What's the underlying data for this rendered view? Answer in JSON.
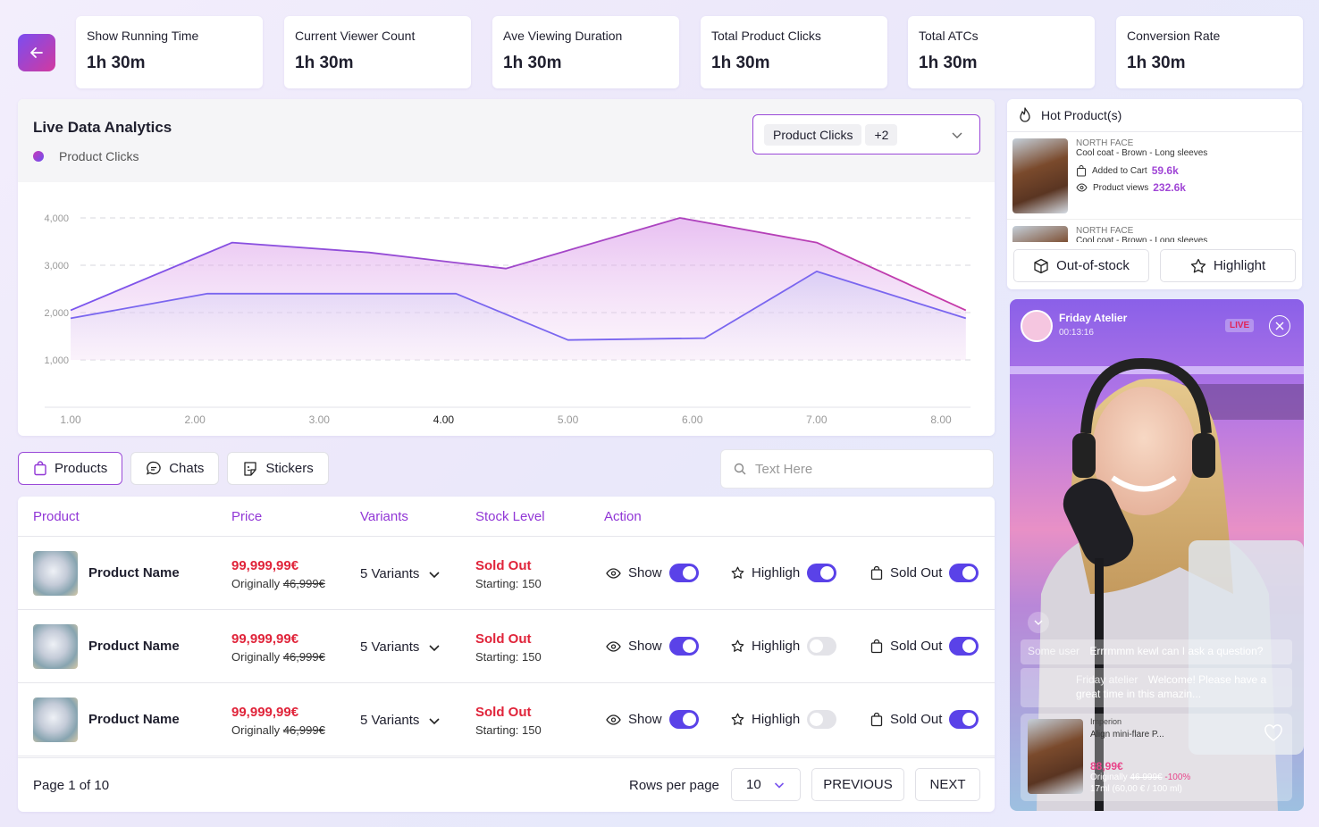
{
  "stats": [
    {
      "label": "Show Running Time",
      "value": "1h 30m"
    },
    {
      "label": "Current Viewer Count",
      "value": "1h 30m"
    },
    {
      "label": "Ave Viewing Duration",
      "value": "1h 30m"
    },
    {
      "label": "Total Product Clicks",
      "value": "1h 30m"
    },
    {
      "label": "Total ATCs",
      "value": "1h 30m"
    },
    {
      "label": "Conversion Rate",
      "value": "1h 30m"
    }
  ],
  "analytics": {
    "title": "Live Data Analytics",
    "legend": "Product Clicks",
    "select_value": "Product Clicks",
    "select_more": "+2"
  },
  "chart_data": {
    "type": "area",
    "x": [
      1.0,
      2.0,
      3.0,
      4.0,
      5.0,
      6.0,
      7.0,
      8.0
    ],
    "x_tick_labels": [
      "1.00",
      "2.00",
      "3.00",
      "4.00",
      "5.00",
      "6.00",
      "7.00",
      "8.00"
    ],
    "y_tick_labels": [
      "4,000",
      "3,000",
      "2,000",
      "1,000"
    ],
    "ylim": [
      0,
      4000
    ],
    "grid": true,
    "series": [
      {
        "name": "Product Clicks",
        "color": "#b23bbd",
        "points": [
          [
            1.0,
            2050
          ],
          [
            2.3,
            3480
          ],
          [
            3.4,
            3270
          ],
          [
            4.5,
            2930
          ],
          [
            5.9,
            4000
          ],
          [
            7.0,
            3480
          ],
          [
            8.2,
            2050
          ]
        ]
      },
      {
        "color": "#7a66ef",
        "points": [
          [
            1.0,
            1880
          ],
          [
            2.1,
            2400
          ],
          [
            4.1,
            2400
          ],
          [
            5.0,
            1420
          ],
          [
            6.1,
            1460
          ],
          [
            7.0,
            2870
          ],
          [
            8.2,
            1880
          ]
        ]
      }
    ],
    "highlight_tick": "4.00"
  },
  "hot": {
    "title": "Hot Product(s)",
    "items": [
      {
        "brand": "NORTH FACE",
        "name": "Cool coat - Brown - Long sleeves",
        "atc_label": "Added to Cart",
        "atc_value": "59.6k",
        "views_label": "Product views",
        "views_value": "232.6k"
      },
      {
        "brand": "NORTH FACE",
        "name": "Cool coat - Brown - Long sleeves"
      }
    ],
    "out_of_stock": "Out-of-stock",
    "highlight": "Highlight"
  },
  "live": {
    "channel": "Friday Atelier",
    "time": "00:13:16",
    "badge": "LIVE",
    "comments": [
      {
        "user": "Some user",
        "text": "Errrmmm kewl can I ask a question?"
      },
      {
        "user": "Friday atelier",
        "text": "Welcome! Please have a great time in this amazin..."
      }
    ],
    "product": {
      "brand": "Imperion",
      "name": "Align mini-flare P...",
      "price": "88,99€",
      "orig_label": "Originally",
      "orig": "46 999€",
      "disc": "-100%",
      "unit": "17ml (60,00 € / 100 ml)"
    }
  },
  "tabs": [
    "Products",
    "Chats",
    "Stickers"
  ],
  "search": {
    "placeholder": "Text Here"
  },
  "table": {
    "headers": [
      "Product",
      "Price",
      "Variants",
      "Stock Level",
      "Action"
    ],
    "rows": [
      {
        "name": "Product Name",
        "price": "99,999,99€",
        "orig_label": "Originally",
        "orig": "46,999€",
        "variants": "5 Variants",
        "stock": "Sold Out",
        "starting": "Starting: 150",
        "show": "Show",
        "show_on": true,
        "highlight": "Highligh",
        "highlight_on": true,
        "soldout": "Sold Out",
        "soldout_on": true
      },
      {
        "name": "Product Name",
        "price": "99,999,99€",
        "orig_label": "Originally",
        "orig": "46,999€",
        "variants": "5 Variants",
        "stock": "Sold Out",
        "starting": "Starting: 150",
        "show": "Show",
        "show_on": true,
        "highlight": "Highligh",
        "highlight_on": false,
        "soldout": "Sold Out",
        "soldout_on": true
      },
      {
        "name": "Product Name",
        "price": "99,999,99€",
        "orig_label": "Originally",
        "orig": "46,999€",
        "variants": "5 Variants",
        "stock": "Sold Out",
        "starting": "Starting: 150",
        "show": "Show",
        "show_on": true,
        "highlight": "Highligh",
        "highlight_on": false,
        "soldout": "Sold Out",
        "soldout_on": true
      }
    ],
    "pagination": {
      "page": "Page 1 of 10",
      "rows_label": "Rows per page",
      "rows_value": "10",
      "prev": "PREVIOUS",
      "next": "NEXT"
    }
  }
}
